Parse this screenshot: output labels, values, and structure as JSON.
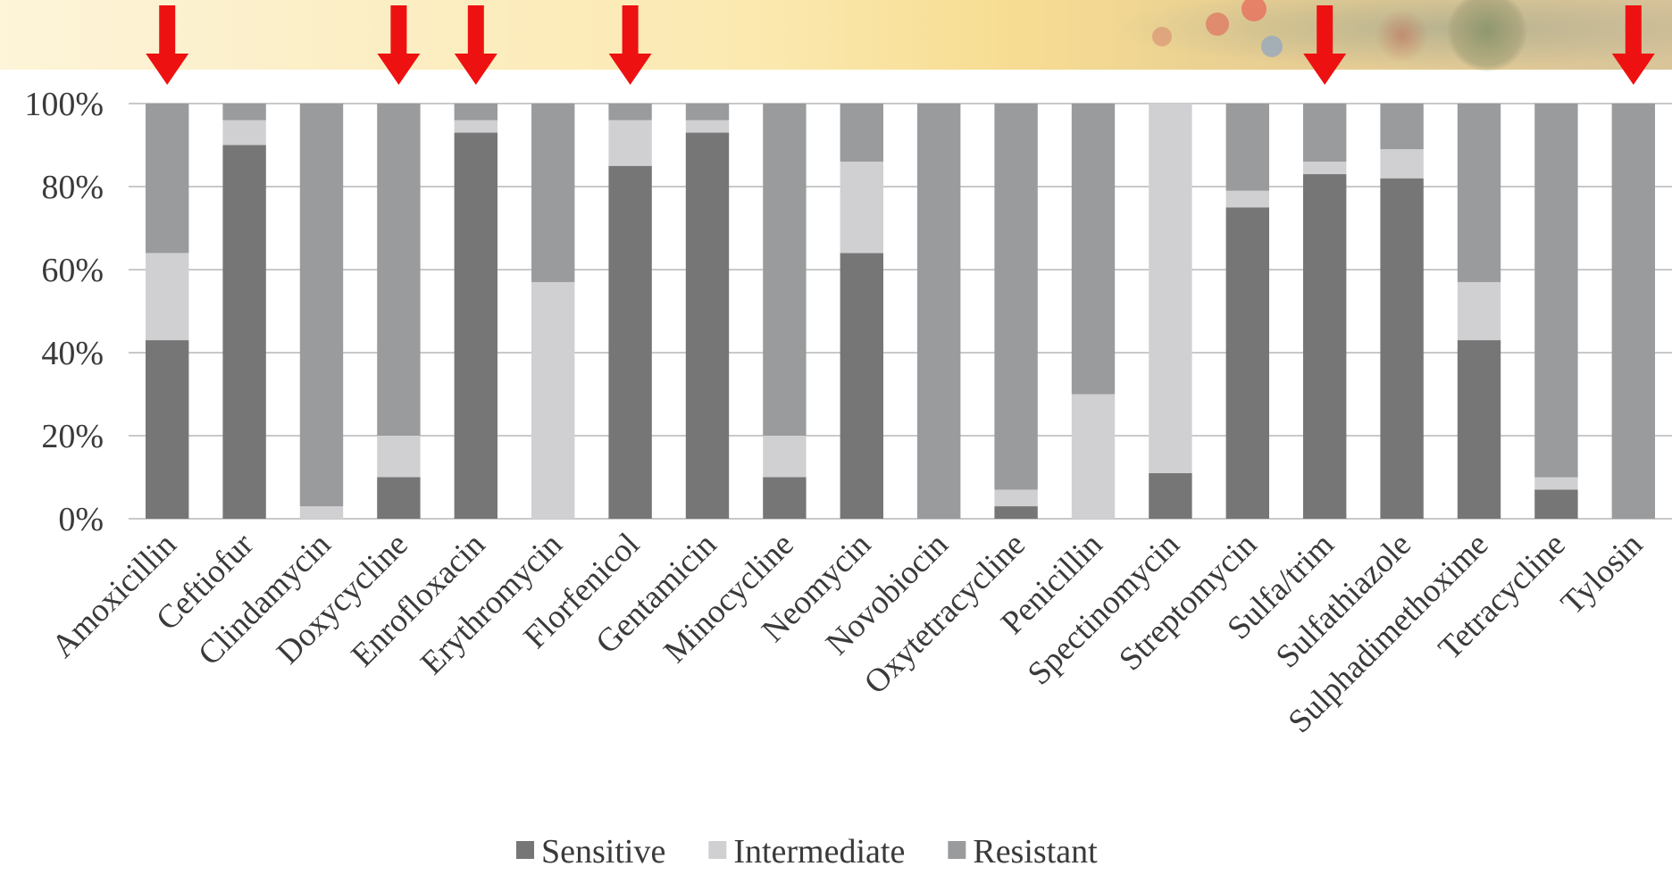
{
  "chart_data": {
    "type": "bar",
    "stacked": true,
    "categories": [
      "Amoxicillin",
      "Ceftiofur",
      "Clindamycin",
      "Doxycycline",
      "Enrofloxacin",
      "Erythromycin",
      "Florfenicol",
      "Gentamicin",
      "Minocycline",
      "Neomycin",
      "Novobiocin",
      "Oxytetracycline",
      "Penicillin",
      "Spectinomycin",
      "Streptomycin",
      "Sulfa/trim",
      "Sulfathiazole",
      "Sulphadimethoxime",
      "Tetracycline",
      "Tylosin"
    ],
    "series": [
      {
        "name": "Sensitive",
        "color": "#767676",
        "values": [
          43,
          90,
          0,
          10,
          93,
          0,
          85,
          93,
          10,
          64,
          0,
          3,
          0,
          11,
          75,
          83,
          82,
          43,
          7,
          0
        ]
      },
      {
        "name": "Intermediate",
        "color": "#d0d0d3",
        "values": [
          21,
          6,
          3,
          10,
          3,
          57,
          11,
          3,
          10,
          22,
          0,
          4,
          30,
          89,
          4,
          3,
          7,
          14,
          3,
          0
        ]
      },
      {
        "name": "Resistant",
        "color": "#999b9d",
        "values": [
          36,
          4,
          97,
          80,
          4,
          43,
          4,
          4,
          80,
          14,
          100,
          93,
          70,
          0,
          21,
          14,
          11,
          43,
          90,
          100
        ]
      }
    ],
    "ylim": [
      0,
      100
    ],
    "yticks": [
      "0%",
      "20%",
      "40%",
      "60%",
      "80%",
      "100%"
    ],
    "grid": true,
    "legend_position": "bottom",
    "highlighted_categories": [
      "Amoxicillin",
      "Doxycycline",
      "Enrofloxacin",
      "Florfenicol",
      "Sulfa/trim",
      "Tylosin"
    ],
    "highlight_color": "#ee1111"
  }
}
